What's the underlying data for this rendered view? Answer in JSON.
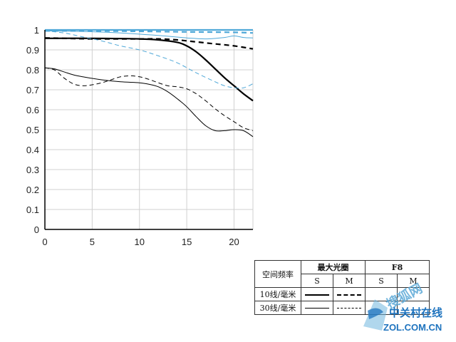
{
  "chart_data": {
    "type": "line",
    "xlim": [
      0,
      22
    ],
    "ylim": [
      0,
      1
    ],
    "x_ticks": [
      "0",
      "5",
      "10",
      "15",
      "20"
    ],
    "y_ticks": [
      "0",
      "0.1",
      "0.2",
      "0.3",
      "0.4",
      "0.5",
      "0.6",
      "0.7",
      "0.8",
      "0.9",
      "1"
    ],
    "grid": true,
    "series": [
      {
        "style": "thick-solid-black",
        "color": "#000000",
        "x": [
          0,
          5,
          10,
          12,
          14,
          15,
          16,
          17,
          18,
          19,
          20,
          21,
          22
        ],
        "y": [
          0.958,
          0.958,
          0.955,
          0.95,
          0.938,
          0.92,
          0.89,
          0.85,
          0.805,
          0.76,
          0.72,
          0.68,
          0.645
        ]
      },
      {
        "style": "thick-dashed-black",
        "color": "#000000",
        "x": [
          0,
          5,
          10,
          12,
          14,
          16,
          18,
          20,
          22
        ],
        "y": [
          0.96,
          0.955,
          0.955,
          0.955,
          0.95,
          0.94,
          0.93,
          0.92,
          0.905
        ]
      },
      {
        "style": "thin-solid-black",
        "color": "#000000",
        "x": [
          0,
          1,
          2,
          3,
          4,
          6,
          8,
          10,
          11,
          12,
          13,
          14,
          15,
          16,
          17,
          18,
          19,
          20,
          21,
          22
        ],
        "y": [
          0.81,
          0.805,
          0.79,
          0.775,
          0.765,
          0.75,
          0.74,
          0.735,
          0.728,
          0.715,
          0.69,
          0.655,
          0.615,
          0.565,
          0.52,
          0.495,
          0.495,
          0.5,
          0.495,
          0.465
        ]
      },
      {
        "style": "thin-dashed-black",
        "color": "#000000",
        "x": [
          0,
          1,
          2,
          3,
          4,
          5,
          6,
          7,
          8,
          9,
          10,
          11,
          12,
          13,
          14,
          15,
          16,
          17,
          18,
          19,
          20,
          21,
          22
        ],
        "y": [
          0.81,
          0.8,
          0.76,
          0.73,
          0.72,
          0.725,
          0.735,
          0.75,
          0.765,
          0.77,
          0.765,
          0.752,
          0.735,
          0.72,
          0.715,
          0.705,
          0.68,
          0.645,
          0.605,
          0.57,
          0.54,
          0.51,
          0.495
        ]
      },
      {
        "style": "thick-solid-blue",
        "color": "#4fa8d8",
        "x": [
          0,
          5,
          10,
          15,
          20,
          22
        ],
        "y": [
          1.0,
          1.0,
          1.0,
          1.0,
          1.0,
          1.0
        ]
      },
      {
        "style": "thick-dashed-blue",
        "color": "#4fa8d8",
        "x": [
          0,
          5,
          10,
          15,
          20,
          22
        ],
        "y": [
          0.995,
          0.995,
          0.993,
          0.99,
          0.988,
          0.985
        ]
      },
      {
        "style": "thin-solid-blue",
        "color": "#4fa8d8",
        "x": [
          0,
          4,
          8,
          12,
          15,
          17,
          19,
          20,
          21,
          22
        ],
        "y": [
          0.995,
          0.992,
          0.985,
          0.972,
          0.96,
          0.955,
          0.962,
          0.97,
          0.962,
          0.96
        ]
      },
      {
        "style": "thin-dashed-blue",
        "color": "#4fa8d8",
        "x": [
          0,
          2,
          4,
          6,
          8,
          10,
          12,
          14,
          16,
          18,
          19,
          20,
          21,
          22
        ],
        "y": [
          0.995,
          0.985,
          0.965,
          0.945,
          0.92,
          0.9,
          0.87,
          0.835,
          0.785,
          0.74,
          0.72,
          0.71,
          0.71,
          0.73
        ]
      }
    ]
  },
  "legend": {
    "corner_label": "空间频率",
    "group_max": "最大光圈",
    "group_f8": "F8",
    "col_s": "S",
    "col_m": "M",
    "row_10": "10线/毫米",
    "row_30": "30线/毫米"
  },
  "watermark": {
    "line1": "搜狐网",
    "line2": "中关村在线",
    "line3": "ZOL.COM.CN"
  }
}
